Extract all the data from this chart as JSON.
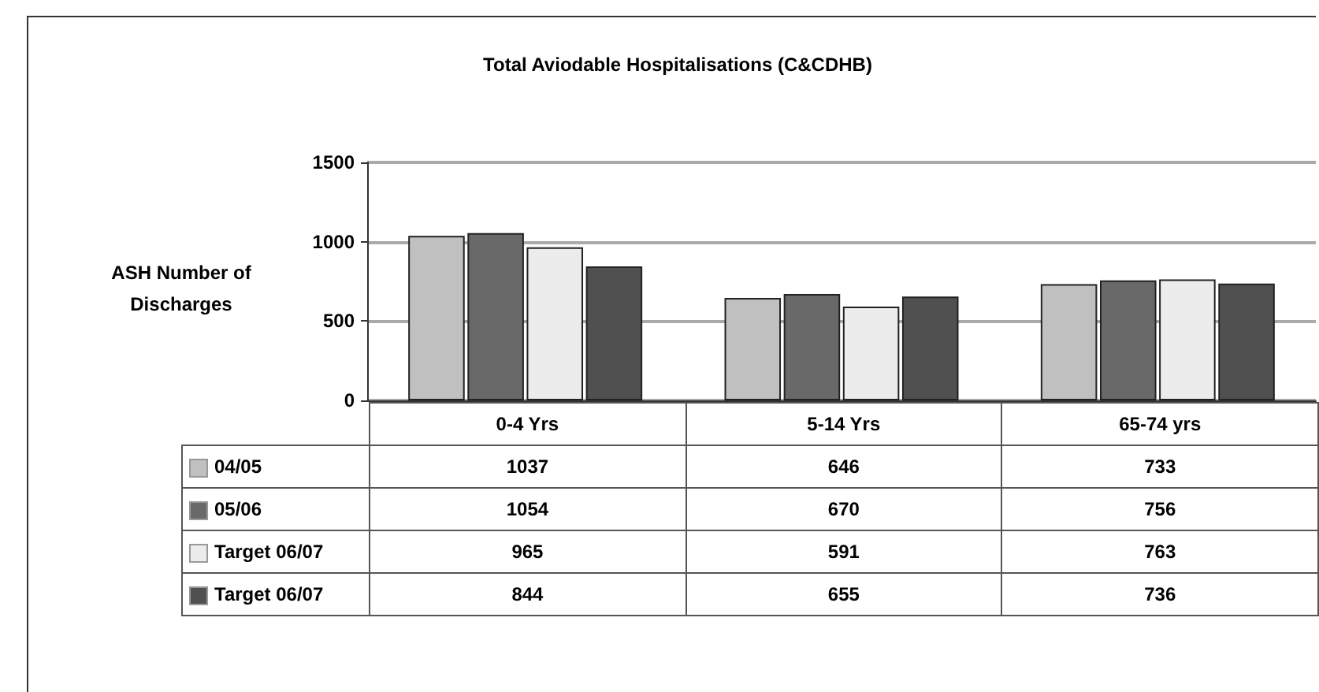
{
  "chart_data": {
    "type": "bar",
    "title": "Total Aviodable Hospitalisations (C&CDHB)",
    "ylabel": "ASH Number of Discharges",
    "categories": [
      "0-4 Yrs",
      "5-14 Yrs",
      "65-74 yrs"
    ],
    "series": [
      {
        "name": "04/05",
        "color": "#c0c0c0",
        "values": [
          1037,
          646,
          733
        ]
      },
      {
        "name": "05/06",
        "color": "#696969",
        "values": [
          1054,
          670,
          756
        ]
      },
      {
        "name": "Target 06/07",
        "color": "#ececec",
        "values": [
          965,
          591,
          763
        ]
      },
      {
        "name": "Target 06/07",
        "color": "#505050",
        "values": [
          844,
          655,
          736
        ]
      }
    ],
    "ylim": [
      0,
      1500
    ],
    "yticks": [
      0,
      500,
      1000,
      1500
    ],
    "grid": "y",
    "legend": "bottom left",
    "data_labels": true
  }
}
